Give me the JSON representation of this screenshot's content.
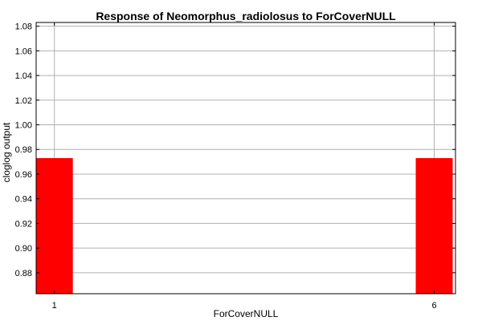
{
  "chart_data": {
    "type": "bar",
    "title": "Response of Neomorphus_radiolosus to ForCoverNULL",
    "xlabel": "ForCoverNULL",
    "ylabel": "cloglog output",
    "categories": [
      "1",
      "6"
    ],
    "x": [
      1,
      6
    ],
    "values": [
      0.973,
      0.973
    ],
    "xlim": [
      0.76,
      6.28
    ],
    "ylim": [
      0.863,
      1.083
    ],
    "yticks": [
      0.88,
      0.9,
      0.92,
      0.94,
      0.96,
      0.98,
      1.0,
      1.02,
      1.04,
      1.06,
      1.08
    ],
    "ytick_labels": [
      "0.88",
      "0.90",
      "0.92",
      "0.94",
      "0.96",
      "0.98",
      "1.00",
      "1.02",
      "1.04",
      "1.06",
      "1.08"
    ],
    "bar_color": "#ff0000",
    "grid": true,
    "legend": "none"
  }
}
